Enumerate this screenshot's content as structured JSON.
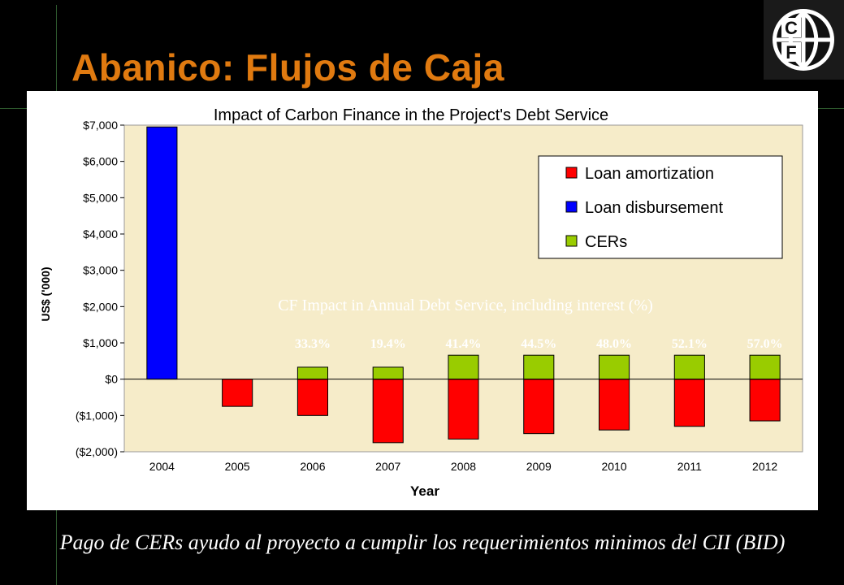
{
  "slide": {
    "title": "Abanico: Flujos de Caja",
    "caption": "Pago de CERs ayudo al proyecto a cumplir los requerimientos minimos del CII (BID)",
    "logo_letters": [
      "C",
      "F"
    ]
  },
  "colors": {
    "title": "#e07a10",
    "plot_bg": "#f6ecc9",
    "loan_amortization": "#ff0000",
    "loan_disbursement": "#0000ff",
    "cers": "#99cc00",
    "overlay_text": "#ffffff"
  },
  "chart_data": {
    "type": "bar",
    "stacked": true,
    "title": "Impact of Carbon Finance in the Project's Debt Service",
    "xlabel": "Year",
    "ylabel": "US$ ('000)",
    "categories": [
      "2004",
      "2005",
      "2006",
      "2007",
      "2008",
      "2009",
      "2010",
      "2011",
      "2012"
    ],
    "ylim": [
      -2000,
      7000
    ],
    "yticks": [
      7000,
      6000,
      5000,
      4000,
      3000,
      2000,
      1000,
      0,
      -1000,
      -2000
    ],
    "ytick_labels": [
      "$7,000",
      "$6,000",
      "$5,000",
      "$4,000",
      "$3,000",
      "$2,000",
      "$1,000",
      "$0",
      "($1,000)",
      "($2,000)"
    ],
    "grid": false,
    "legend_position": "top-right",
    "series": [
      {
        "name": "Loan amortization",
        "color": "#ff0000",
        "values": [
          0,
          -750,
          -1000,
          -1750,
          -1650,
          -1500,
          -1400,
          -1300,
          -1150
        ]
      },
      {
        "name": "Loan disbursement",
        "color": "#0000ff",
        "values": [
          6950,
          0,
          0,
          0,
          0,
          0,
          0,
          0,
          0
        ]
      },
      {
        "name": "CERs",
        "color": "#99cc00",
        "values": [
          0,
          0,
          330,
          330,
          660,
          660,
          660,
          660,
          660
        ]
      }
    ],
    "annotation": {
      "label": "CF Impact in Annual Debt Service, including interest (%)",
      "values": [
        "33.3%",
        "19.4%",
        "41.4%",
        "44.5%",
        "48.0%",
        "52.1%",
        "57.0%"
      ],
      "years": [
        "2006",
        "2007",
        "2008",
        "2009",
        "2010",
        "2011",
        "2012"
      ]
    }
  }
}
